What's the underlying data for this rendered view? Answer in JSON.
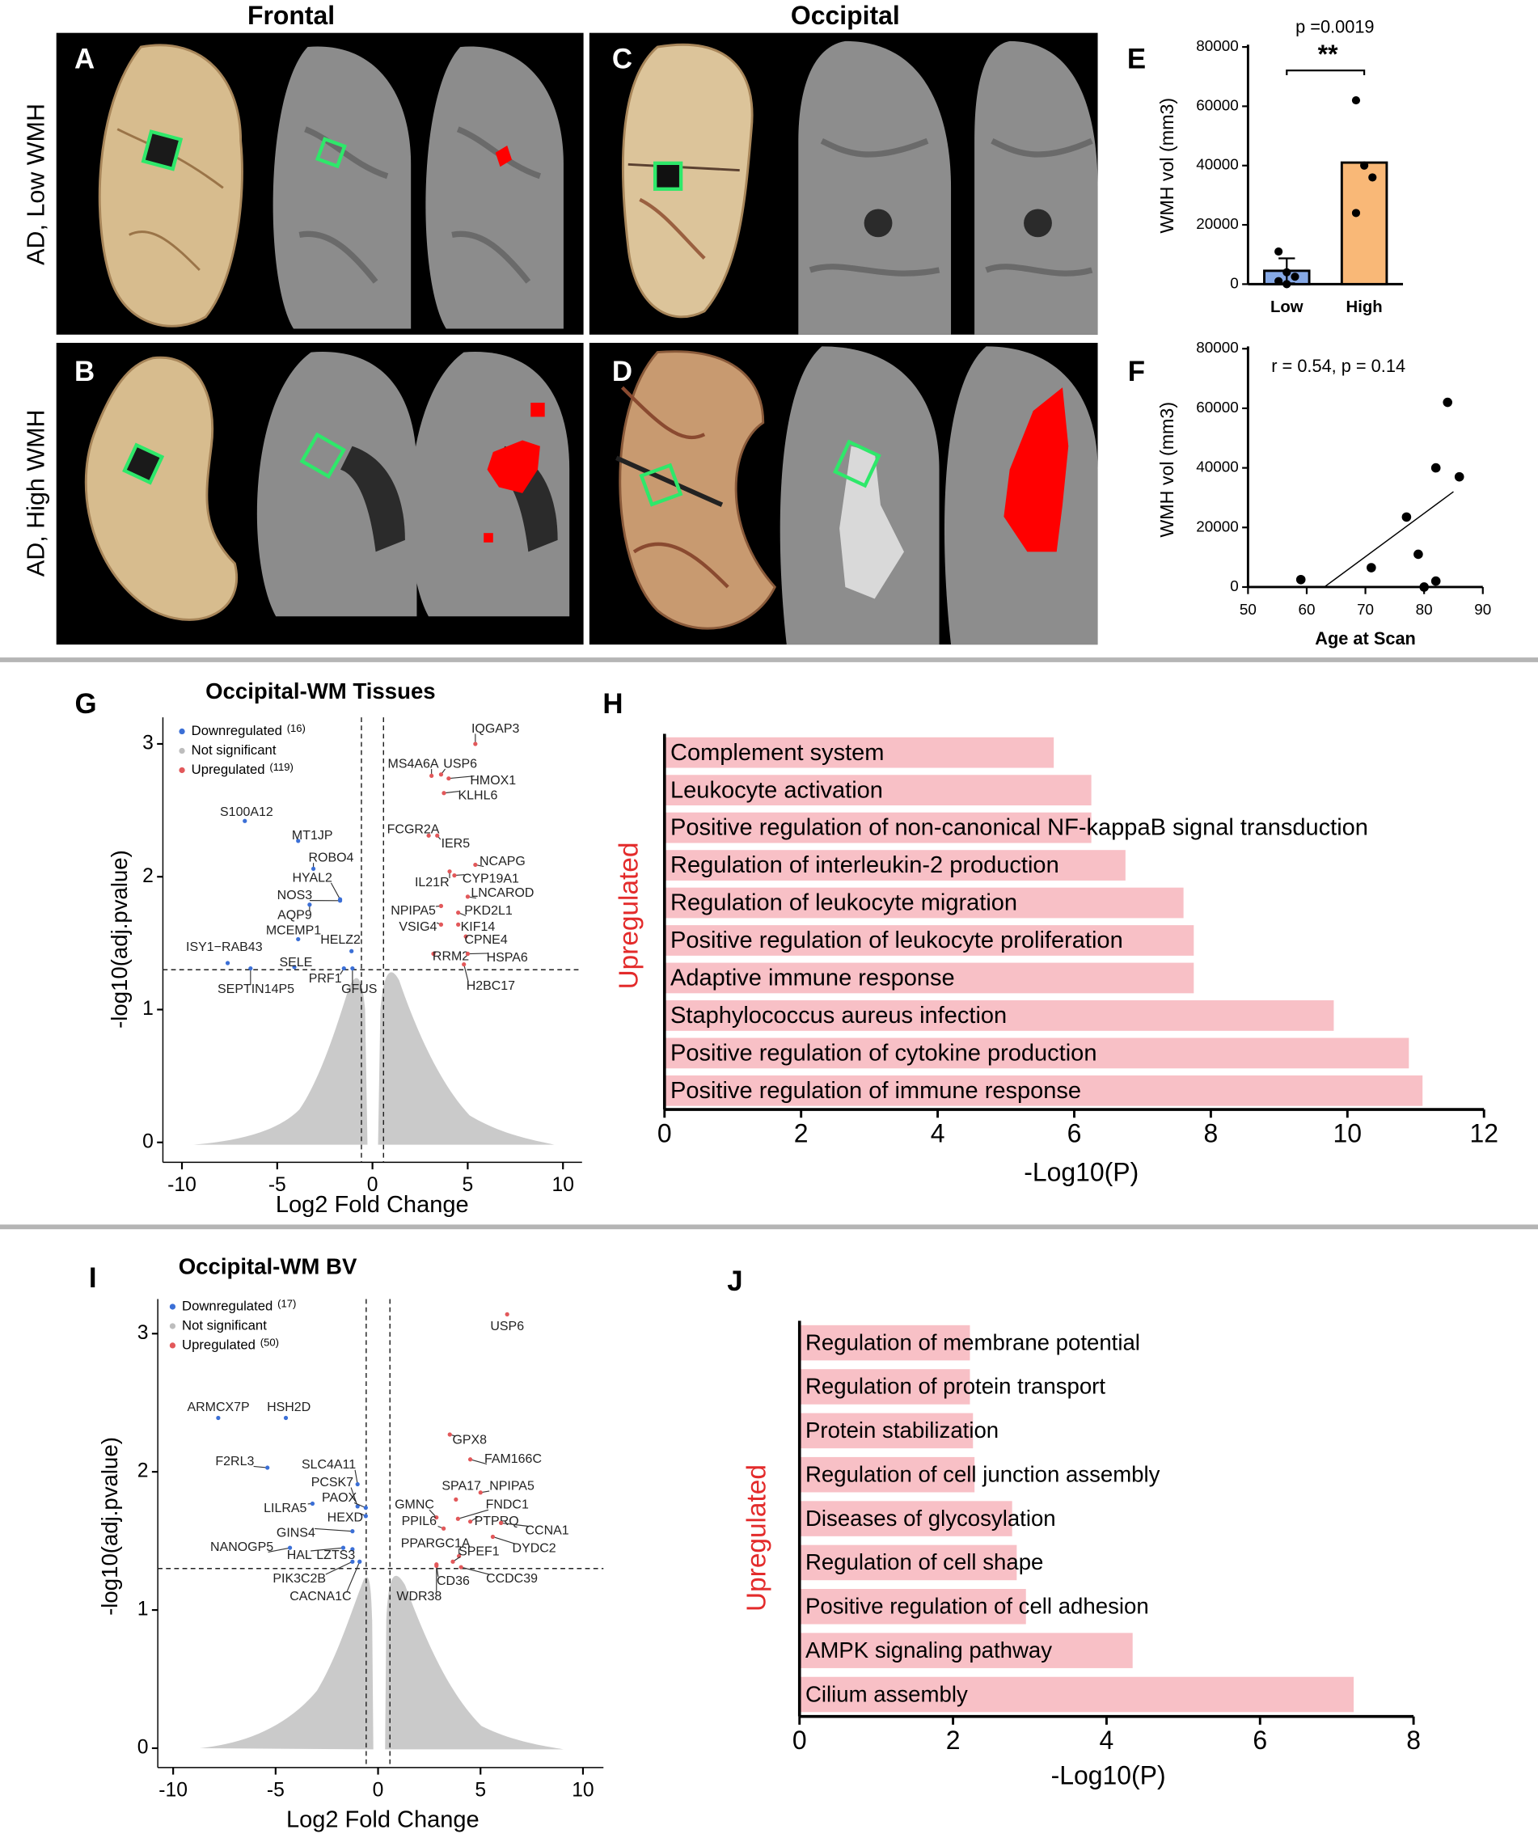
{
  "figure": {
    "column_titles": [
      "Frontal",
      "Occipital"
    ],
    "row_labels": [
      "AD, Low WMH",
      "AD, High WMH"
    ],
    "panel_labels": [
      "A",
      "B",
      "C",
      "D",
      "E",
      "F",
      "G",
      "H",
      "I",
      "J"
    ]
  },
  "chart_data": [
    {
      "type": "bar",
      "categories": [
        "Low",
        "High"
      ],
      "values": [
        4500,
        41000
      ],
      "errors": [
        4200,
        null
      ],
      "colors": [
        "#86a9e6",
        "#f9b877"
      ],
      "points": [
        [
          11000,
          4000,
          2500,
          1000,
          0
        ],
        [
          62000,
          40000,
          36000,
          24000
        ]
      ],
      "ylim": [
        0,
        80000
      ],
      "yticks": [
        0,
        20000,
        40000,
        60000,
        80000
      ],
      "ylabel": "WMH vol (mm3)",
      "annotations": [
        "p =0.0019",
        "**"
      ]
    },
    {
      "type": "scatter",
      "x": [
        59,
        71,
        77,
        79,
        80,
        82,
        82,
        84,
        86
      ],
      "values": [
        2500,
        6500,
        23500,
        11000,
        0,
        40000,
        2000,
        62000,
        37000
      ],
      "color": "#000000",
      "trendline": {
        "x": [
          63,
          85
        ],
        "y": [
          0,
          32000
        ]
      },
      "xlim": [
        50,
        90
      ],
      "xticks": [
        50,
        60,
        70,
        80,
        90
      ],
      "ylim": [
        0,
        80000
      ],
      "yticks": [
        0,
        20000,
        40000,
        60000,
        80000
      ],
      "xlabel": "Age at Scan",
      "ylabel": "WMH vol (mm3)",
      "annotations": [
        "r = 0.54, p = 0.14"
      ]
    },
    {
      "type": "volcano",
      "title": "Occipital-WM Tissues",
      "xlabel": "Log2 Fold Change",
      "ylabel": "-log10(adj.pvalue)",
      "xlim": [
        -11,
        11
      ],
      "xticks": [
        -10,
        -5,
        0,
        5,
        10
      ],
      "ylim": [
        -0.15,
        3.2
      ],
      "yticks": [
        0,
        1,
        2,
        3
      ],
      "thresholds": {
        "x": [
          -0.58,
          0.58
        ],
        "y": 1.3
      },
      "series": [
        {
          "name": "Downregulated",
          "count_label": "(16)",
          "color": "#3b6fd6",
          "labels": [
            "S100A12",
            "MT1JP",
            "ROBO4",
            "HYAL2",
            "NOS3",
            "AQP9",
            "MCEMP1",
            "HELZ2",
            "ISY1−RAB43",
            "SELE",
            "SEPTIN14P5",
            "PRF1",
            "GFUS"
          ],
          "x": [
            -6.7,
            -3.9,
            -3.1,
            -1.7,
            -1.7,
            -3.3,
            -3.9,
            -1.1,
            -7.6,
            -4.1,
            -6.4,
            -1.5,
            -1.05
          ],
          "y": [
            2.42,
            2.27,
            2.06,
            1.83,
            1.82,
            1.79,
            1.53,
            1.44,
            1.35,
            1.32,
            1.31,
            1.31,
            1.31
          ]
        },
        {
          "name": "Not significant",
          "color": "#bdbdbd"
        },
        {
          "name": "Upregulated",
          "count_label": "(119)",
          "color": "#e2585a",
          "labels": [
            "IQGAP3",
            "MS4A6A",
            "USP6",
            "HMOX1",
            "KLHL6",
            "FCGR2A",
            "IER5",
            "NCAPG",
            "IL21R",
            "CYP19A1",
            "LNCAROD",
            "NPIPA5",
            "PKD2L1",
            "VSIG4",
            "KIF14",
            "CPNE4",
            "RRM2",
            "HSPA6",
            "H2BC17"
          ],
          "x": [
            5.4,
            3.1,
            3.6,
            4.0,
            3.75,
            2.95,
            3.4,
            5.4,
            4.05,
            4.3,
            5.0,
            3.6,
            4.5,
            3.6,
            4.5,
            4.9,
            3.2,
            5.0,
            4.8
          ],
          "y": [
            3.0,
            2.76,
            2.77,
            2.74,
            2.63,
            2.31,
            2.31,
            2.09,
            2.04,
            2.01,
            1.85,
            1.78,
            1.73,
            1.64,
            1.64,
            1.55,
            1.42,
            1.42,
            1.34
          ]
        }
      ]
    },
    {
      "type": "barh",
      "categories": [
        "Complement system",
        "Leukocyte activation",
        "Positive regulation of non-canonical NF-kappaB signal transduction",
        "Regulation of interleukin-2 production",
        "Regulation of leukocyte migration",
        "Positive regulation of leukocyte proliferation",
        "Adaptive immune response",
        "Staphylococcus aureus infection",
        "Positive regulation of cytokine production",
        "Positive regulation of immune response"
      ],
      "values": [
        5.7,
        6.25,
        6.25,
        6.75,
        7.6,
        7.75,
        7.75,
        9.8,
        10.9,
        11.1
      ],
      "color": "#f8c0c6",
      "xlim": [
        0,
        12
      ],
      "xticks": [
        0,
        2,
        4,
        6,
        8,
        10,
        12
      ],
      "xlabel": "-Log10(P)",
      "ylabel": "Upregulated",
      "ylabel_color": "#e32b2b"
    },
    {
      "type": "volcano",
      "title": "Occipital-WM BV",
      "xlabel": "Log2 Fold Change",
      "ylabel": "-log10(adj.pvalue)",
      "xlim": [
        -10.75,
        11
      ],
      "xticks": [
        -10,
        -5,
        0,
        5,
        10
      ],
      "ylim": [
        -0.14,
        3.25
      ],
      "yticks": [
        0,
        1,
        2,
        3
      ],
      "thresholds": {
        "x": [
          -0.58,
          0.58
        ],
        "y": 1.3
      },
      "series": [
        {
          "name": "Downregulated",
          "count_label": "(17)",
          "color": "#3b6fd6",
          "labels": [
            "ARMCX7P",
            "HSH2D",
            "F2RL3",
            "SLC4A11",
            "PCSK7",
            "PAOX",
            "LILRA5",
            "HEXD",
            "GINS4",
            "NANOGP5",
            "HAL",
            "LZTS3",
            "PIK3C2B",
            "CACNA1C"
          ],
          "x": [
            -7.8,
            -4.5,
            -5.4,
            -1.0,
            -1.0,
            -0.6,
            -3.2,
            -0.6,
            -1.25,
            -4.3,
            -1.7,
            -1.25,
            -1.25,
            -0.9
          ],
          "y": [
            2.39,
            2.39,
            2.03,
            1.91,
            1.75,
            1.74,
            1.77,
            1.68,
            1.57,
            1.45,
            1.45,
            1.44,
            1.35,
            1.35
          ]
        },
        {
          "name": "Not significant",
          "color": "#bdbdbd"
        },
        {
          "name": "Upregulated",
          "count_label": "(50)",
          "color": "#e2585a",
          "labels": [
            "USP6",
            "GPX8",
            "FAM166C",
            "SPA17",
            "NPIPA5",
            "FNDC1",
            "GMNC",
            "PPIL6",
            "PTPRQ",
            "CCNA1",
            "PPARGC1A",
            "DYDC2",
            "SPEF1",
            "CD36",
            "CCDC39",
            "WDR38"
          ],
          "x": [
            6.3,
            3.5,
            4.5,
            3.8,
            5.0,
            3.9,
            2.85,
            3.2,
            4.5,
            6.0,
            3.95,
            5.6,
            3.65,
            2.85,
            4.05,
            2.85
          ],
          "y": [
            3.14,
            2.27,
            2.09,
            1.8,
            1.85,
            1.66,
            1.67,
            1.59,
            1.64,
            1.63,
            1.39,
            1.53,
            1.35,
            1.33,
            1.31,
            1.32
          ]
        }
      ]
    },
    {
      "type": "barh",
      "categories": [
        "Regulation of membrane potential",
        "Regulation of protein transport",
        "Protein stabilization",
        "Regulation of cell junction assembly",
        "Diseases of glycosylation",
        "Regulation of cell shape",
        "Positive regulation of cell adhesion",
        "AMPK signaling pathway",
        "Cilium assembly"
      ],
      "values": [
        2.22,
        2.22,
        2.26,
        2.28,
        2.77,
        2.83,
        2.95,
        4.34,
        7.22
      ],
      "color": "#f8c0c6",
      "xlim": [
        0,
        8
      ],
      "xticks": [
        0,
        2,
        4,
        6,
        8
      ],
      "xlabel": "-Log10(P)",
      "ylabel": "Upregulated",
      "ylabel_color": "#e32b2b"
    }
  ]
}
